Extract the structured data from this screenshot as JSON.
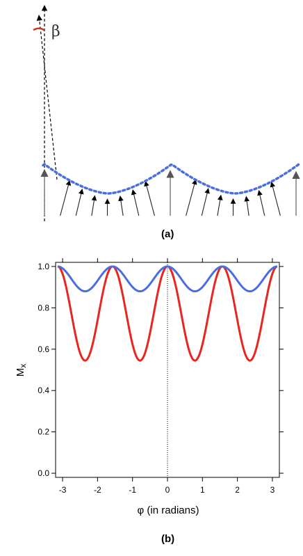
{
  "panel_a": {
    "label": "(a)",
    "angle_symbol": "β",
    "colors": {
      "arrow": "#000000",
      "lattice_arrow": "#888888",
      "envelope": "#4a6ee0",
      "angle_arc": "#c0392b"
    }
  },
  "panel_b": {
    "label": "(b)"
  },
  "chart_data": {
    "type": "line",
    "xlabel": "φ (in radians)",
    "ylabel": "Mx",
    "ylabel_main": "M",
    "ylabel_sub": "x",
    "xlim": [
      -3.2,
      3.2
    ],
    "ylim": [
      -0.02,
      1.02
    ],
    "xticks": [
      -3,
      -2,
      -1,
      0,
      1,
      2,
      3
    ],
    "xtick_labels": [
      "-3",
      "-2",
      "-1",
      "0",
      "1",
      "2",
      "3"
    ],
    "yticks": [
      0.0,
      0.2,
      0.4,
      0.6,
      0.8,
      1.0
    ],
    "ytick_labels": [
      "0.0",
      "0.2",
      "0.4",
      "0.6",
      "0.8",
      "1.0"
    ],
    "reference_line": {
      "x": 0,
      "style": "dotted"
    },
    "grid": false,
    "series": [
      {
        "color": "#e8251f",
        "min": 0.545,
        "max": 1.0,
        "period": 1.5708,
        "minima_at": [
          -2.356,
          -0.785,
          0.785,
          2.356
        ]
      },
      {
        "color": "#4a6ee0",
        "min": 0.88,
        "max": 1.0,
        "period": 1.5708,
        "minima_at": [
          -2.356,
          -0.785,
          0.785,
          2.356
        ]
      }
    ]
  }
}
